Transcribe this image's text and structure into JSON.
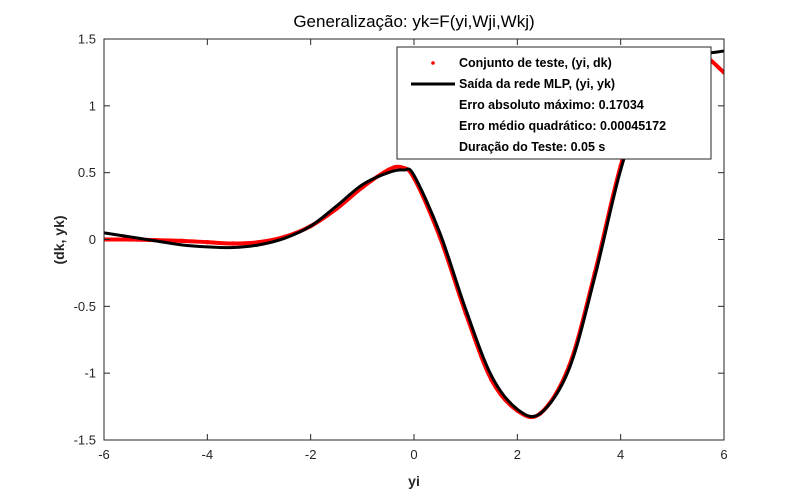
{
  "chart_data": {
    "type": "line",
    "title": "Generalização: yk=F(yi,Wji,Wkj)",
    "xlabel": "yi",
    "ylabel": "(dk, yk)",
    "xlim": [
      -6,
      6
    ],
    "ylim": [
      -1.5,
      1.5
    ],
    "xticks": [
      -6,
      -4,
      -2,
      0,
      2,
      4,
      6
    ],
    "yticks": [
      -1.5,
      -1,
      -0.5,
      0,
      0.5,
      1,
      1.5
    ],
    "xtick_labels": [
      "-6",
      "-4",
      "-2",
      "0",
      "2",
      "4",
      "6"
    ],
    "ytick_labels": [
      "-1.5",
      "-1",
      "-0.5",
      "0",
      "0.5",
      "1",
      "1.5"
    ],
    "grid": false,
    "legend_position": "top-right",
    "series": [
      {
        "name": "Conjunto de teste, (yi, dk)",
        "color": "#ff0000",
        "marker": "dot",
        "x": [
          -6,
          -5.5,
          -5,
          -4.5,
          -4,
          -3.5,
          -3,
          -2.5,
          -2,
          -1.5,
          -1,
          -0.5,
          -0.25,
          0,
          0.5,
          1,
          1.5,
          2,
          2.45,
          3,
          3.5,
          4,
          4.5,
          5,
          5.5,
          6
        ],
        "y": [
          0.0,
          0.0,
          -0.005,
          -0.01,
          -0.02,
          -0.03,
          -0.02,
          0.02,
          0.1,
          0.23,
          0.39,
          0.52,
          0.54,
          0.46,
          0.02,
          -0.55,
          -1.05,
          -1.28,
          -1.3,
          -0.95,
          -0.25,
          0.55,
          1.1,
          1.35,
          1.4,
          1.25
        ]
      },
      {
        "name": "Saída da rede MLP, (yi, yk)",
        "color": "#000000",
        "marker": "line",
        "x": [
          -6,
          -5.5,
          -5,
          -4.5,
          -4,
          -3.5,
          -3,
          -2.5,
          -2,
          -1.5,
          -1,
          -0.5,
          -0.2,
          0,
          0.5,
          1,
          1.5,
          2,
          2.45,
          3,
          3.5,
          4,
          4.5,
          5,
          5.5,
          6
        ],
        "y": [
          0.05,
          0.02,
          -0.01,
          -0.04,
          -0.055,
          -0.06,
          -0.04,
          0.01,
          0.1,
          0.25,
          0.41,
          0.5,
          0.52,
          0.48,
          0.05,
          -0.52,
          -1.02,
          -1.27,
          -1.3,
          -0.97,
          -0.28,
          0.52,
          1.08,
          1.32,
          1.38,
          1.41
        ]
      }
    ],
    "legend_extra": [
      "Erro absoluto máximo: 0.17034",
      "Erro médio quadrático: 0.00045172",
      "Duração do Teste: 0.05 s"
    ]
  }
}
